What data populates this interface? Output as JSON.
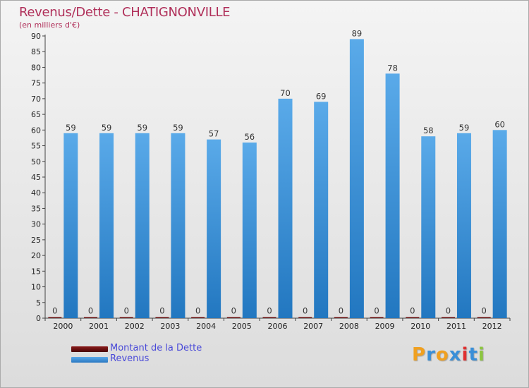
{
  "chart_data": {
    "type": "bar",
    "title": "Revenus/Dette - CHATIGNONVILLE",
    "subtitle": "(en milliers d'€)",
    "categories": [
      "2000",
      "2001",
      "2002",
      "2003",
      "2004",
      "2005",
      "2006",
      "2007",
      "2008",
      "2009",
      "2010",
      "2011",
      "2012"
    ],
    "series": [
      {
        "name": "Montant de la Dette",
        "color": "#6b0a0a",
        "values": [
          0,
          0,
          0,
          0,
          0,
          0,
          0,
          0,
          0,
          0,
          0,
          0,
          0
        ]
      },
      {
        "name": "Revenus",
        "color": "#4d9fe2",
        "values": [
          59,
          59,
          59,
          59,
          57,
          56,
          70,
          69,
          89,
          78,
          58,
          59,
          60
        ]
      }
    ],
    "yticks": [
      0,
      5,
      10,
      15,
      20,
      25,
      30,
      35,
      40,
      45,
      50,
      55,
      60,
      65,
      70,
      75,
      80,
      85,
      90
    ],
    "ylim": [
      0,
      90
    ],
    "grid": false,
    "legend_position": "bottom-left"
  },
  "brand": {
    "letters": [
      "P",
      "r",
      "o",
      "x",
      "i",
      "t",
      "i"
    ],
    "colors": [
      "#f0a020",
      "#3a8fd8",
      "#f0a020",
      "#3a8fd8",
      "#e03030",
      "#3a8fd8",
      "#8cc63f"
    ]
  }
}
